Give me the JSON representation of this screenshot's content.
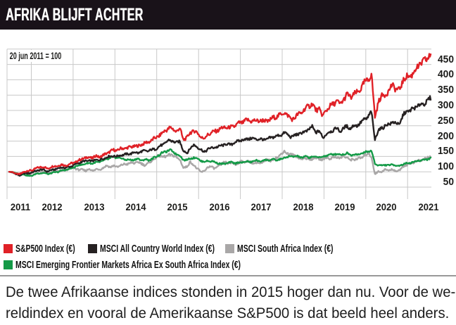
{
  "title": "AFRIKA BLIJFT ACHTER",
  "chart": {
    "note": "20 jun 2011 = 100",
    "y_ticks": [
      450,
      400,
      350,
      300,
      250,
      200,
      150,
      100,
      50
    ],
    "x_ticks": [
      "2011",
      "2012",
      "2013",
      "2014",
      "2015",
      "2016",
      "2017",
      "2018",
      "2019",
      "2020",
      "2021"
    ],
    "grid_color": "#c8c8c8"
  },
  "caption": {
    "lines": [
      "De twee Afrikaanse indices stonden in 2015 hoger dan nu. Voor de we-",
      "reldindex en vooral de Amerikaanse S&P500 is dat beeld heel anders."
    ]
  },
  "chart_data": {
    "type": "line",
    "title": "AFRIKA BLIJFT ACHTER",
    "note": "20 jun 2011 = 100",
    "x_start": "20 jun 2011",
    "x_end": "jul 2021",
    "frequency": "monthly",
    "ylim": [
      50,
      500
    ],
    "legend_position": "bottom",
    "series": [
      {
        "name": "S&P500 Index (€)",
        "color": "#e02127",
        "key": "sp500",
        "values": [
          100,
          99,
          94,
          91,
          99,
          102,
          104,
          107,
          112,
          116,
          115,
          110,
          116,
          118,
          120,
          123,
          121,
          123,
          128,
          131,
          137,
          143,
          145,
          148,
          145,
          152,
          148,
          154,
          160,
          166,
          171,
          170,
          175,
          177,
          178,
          181,
          184,
          183,
          190,
          193,
          197,
          204,
          210,
          218,
          226,
          236,
          243,
          239,
          232,
          241,
          206,
          210,
          228,
          234,
          227,
          214,
          208,
          222,
          226,
          232,
          236,
          242,
          245,
          243,
          246,
          252,
          258,
          262,
          268,
          266,
          267,
          265,
          268,
          266,
          265,
          270,
          277,
          282,
          286,
          295,
          282,
          272,
          276,
          287,
          295,
          305,
          315,
          322,
          300,
          306,
          280,
          302,
          312,
          320,
          332,
          318,
          337,
          352,
          342,
          354,
          357,
          374,
          390,
          400,
          420,
          278,
          330,
          345,
          355,
          362,
          385,
          370,
          365,
          398,
          408,
          412,
          422,
          438,
          452,
          458,
          470,
          482
        ]
      },
      {
        "name": "MSCI All Country World Index (€)",
        "color": "#262122",
        "key": "msci-acwi",
        "values": [
          100,
          98,
          92,
          88,
          94,
          95,
          96,
          100,
          104,
          107,
          106,
          101,
          105,
          108,
          111,
          114,
          113,
          115,
          119,
          124,
          129,
          133,
          135,
          137,
          134,
          140,
          138,
          143,
          148,
          150,
          152,
          150,
          154,
          156,
          157,
          160,
          163,
          162,
          166,
          168,
          168,
          172,
          175,
          181,
          188,
          196,
          203,
          200,
          194,
          200,
          169,
          160,
          178,
          186,
          182,
          172,
          164,
          174,
          177,
          181,
          180,
          187,
          189,
          189,
          191,
          196,
          202,
          203,
          207,
          208,
          208,
          207,
          206,
          205,
          206,
          210,
          215,
          216,
          220,
          228,
          220,
          214,
          218,
          224,
          226,
          231,
          238,
          246,
          230,
          232,
          212,
          222,
          230,
          236,
          242,
          232,
          242,
          248,
          242,
          250,
          252,
          260,
          272,
          278,
          295,
          206,
          235,
          243,
          251,
          254,
          263,
          258,
          254,
          282,
          296,
          300,
          305,
          313,
          319,
          322,
          331,
          339
        ]
      },
      {
        "name": "MSCI South Africa Index (€)",
        "color": "#a9a7a7",
        "key": "msci-south-africa",
        "values": [
          100,
          98,
          95,
          86,
          93,
          92,
          94,
          99,
          102,
          100,
          100,
          94,
          98,
          101,
          102,
          104,
          106,
          108,
          113,
          111,
          107,
          106,
          104,
          109,
          103,
          109,
          107,
          114,
          119,
          116,
          120,
          115,
          121,
          124,
          126,
          129,
          128,
          132,
          126,
          122,
          127,
          137,
          145,
          152,
          150,
          148,
          157,
          152,
          148,
          140,
          112,
          118,
          131,
          122,
          110,
          99,
          103,
          114,
          118,
          110,
          117,
          126,
          131,
          127,
          129,
          123,
          131,
          133,
          134,
          132,
          129,
          130,
          126,
          132,
          139,
          137,
          142,
          146,
          158,
          166,
          160,
          155,
          152,
          146,
          142,
          146,
          139,
          143,
          145,
          142,
          140,
          146,
          144,
          146,
          149,
          144,
          150,
          146,
          138,
          141,
          143,
          144,
          154,
          158,
          151,
          92,
          101,
          101,
          107,
          105,
          107,
          103,
          104,
          117,
          123,
          125,
          131,
          134,
          136,
          142,
          145,
          151
        ]
      },
      {
        "name": "MSCI Emerging Frontier Markets Africa Ex South Africa Index (€)",
        "color": "#149a47",
        "key": "msci-africa-ex-sa",
        "values": [
          100,
          99,
          96,
          92,
          93,
          88,
          86,
          90,
          94,
          96,
          96,
          93,
          95,
          98,
          100,
          103,
          106,
          108,
          112,
          117,
          121,
          124,
          126,
          129,
          127,
          131,
          132,
          136,
          141,
          144,
          148,
          147,
          144,
          141,
          139,
          138,
          140,
          142,
          137,
          140,
          138,
          142,
          148,
          155,
          162,
          166,
          171,
          166,
          158,
          152,
          140,
          138,
          144,
          146,
          144,
          136,
          132,
          136,
          134,
          132,
          128,
          125,
          127,
          129,
          131,
          128,
          130,
          131,
          133,
          132,
          134,
          137,
          134,
          137,
          139,
          138,
          140,
          138,
          141,
          146,
          148,
          150,
          151,
          149,
          147,
          149,
          147,
          150,
          147,
          149,
          148,
          153,
          155,
          157,
          159,
          155,
          158,
          160,
          155,
          157,
          156,
          159,
          163,
          166,
          169,
          126,
          122,
          120,
          123,
          121,
          123,
          121,
          119,
          125,
          127,
          129,
          132,
          134,
          137,
          139,
          141,
          145
        ]
      }
    ]
  }
}
